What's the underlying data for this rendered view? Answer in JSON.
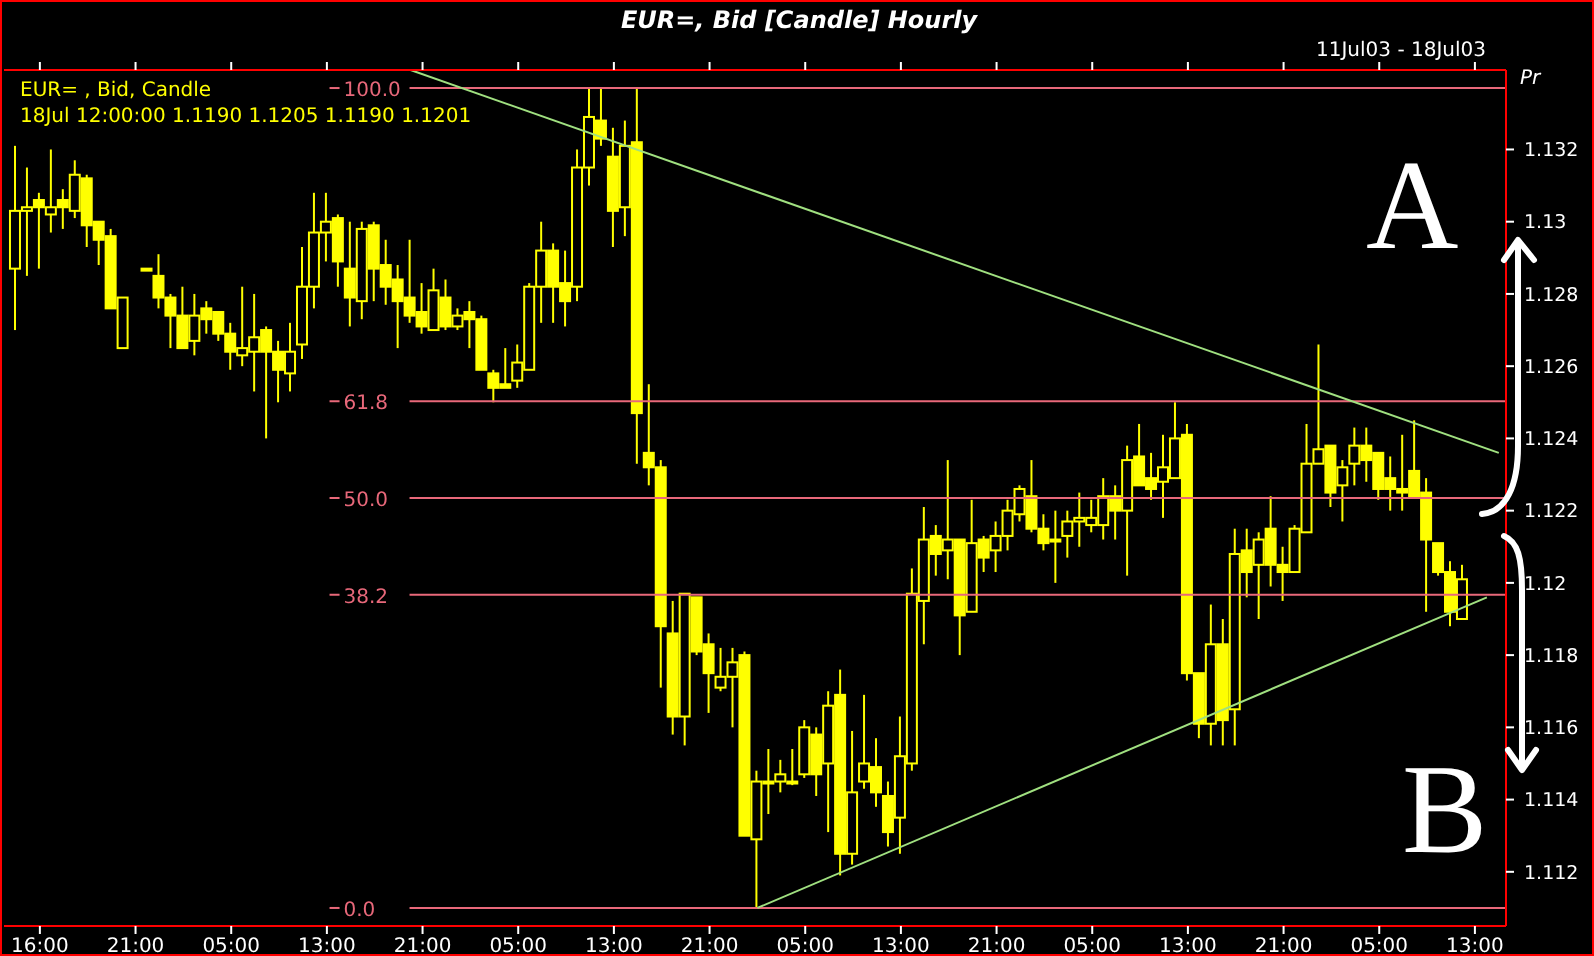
{
  "chart_data": {
    "type": "candlestick",
    "title": "EUR=, Bid [Candle] Hourly",
    "subtitle": "11Jul03 - 18Jul03",
    "ylabel": "Pr",
    "annotations": [
      "18Jul 12:00:00 1.1190 1.1205 1.1190 1.1201",
      "A",
      "B"
    ],
    "legend": "top left",
    "categories": [
      null,
      null,
      "16:00",
      null,
      null,
      null,
      null,
      null,
      null,
      null,
      "21:00",
      null,
      null,
      null,
      null,
      null,
      null,
      null,
      "05:00",
      null,
      null,
      null,
      null,
      null,
      null,
      null,
      "13:00",
      null,
      null,
      null,
      null,
      null,
      null,
      null,
      "21:00",
      null,
      null,
      null,
      null,
      null,
      null,
      null,
      "05:00",
      null,
      null,
      null,
      null,
      null,
      null,
      null,
      "13:00",
      null,
      null,
      null,
      null,
      null,
      null,
      null,
      "21:00",
      null,
      null,
      null,
      null,
      null,
      null,
      null,
      "05:00",
      null,
      null,
      null,
      null,
      null,
      null,
      null,
      "13:00",
      null,
      null,
      null,
      null,
      null,
      null,
      null,
      "21:00",
      null,
      null,
      null,
      null,
      null,
      null,
      null,
      "05:00",
      null,
      null,
      null,
      null,
      null,
      null,
      null,
      "13:00",
      null,
      null,
      null,
      null,
      null,
      null,
      null,
      "21:00",
      null,
      null,
      null,
      null,
      null,
      null,
      null,
      "05:00",
      null,
      null,
      null,
      null,
      null,
      null,
      null,
      "13:00",
      null,
      null
    ],
    "ylim": [
      1.1105,
      1.1342
    ],
    "yticks": [
      1.112,
      1.114,
      1.116,
      1.118,
      1.12,
      1.122,
      1.124,
      1.126,
      1.128,
      1.13,
      1.132
    ],
    "series": [
      {
        "name": "EUR= , Bid, Candle",
        "color": "#ffff00",
        "ohlc": [
          [
            1.1287,
            1.1321,
            1.127,
            1.1303
          ],
          [
            1.1303,
            1.1315,
            1.1285,
            1.1304
          ],
          [
            1.1306,
            1.1308,
            1.1287,
            1.1304
          ],
          [
            1.1302,
            1.132,
            1.1297,
            1.1304
          ],
          [
            1.1306,
            1.1309,
            1.1298,
            1.1304
          ],
          [
            1.1303,
            1.1317,
            1.1301,
            1.1313
          ],
          [
            1.1312,
            1.1313,
            1.1293,
            1.1299
          ],
          [
            1.13,
            1.13,
            1.1288,
            1.1295
          ],
          [
            1.1296,
            1.1298,
            1.1276,
            1.1276
          ],
          [
            1.1265,
            1.1279,
            1.1265,
            1.1279
          ],
          null,
          [
            1.1287,
            1.1287,
            1.1287,
            1.1287
          ],
          [
            1.1285,
            1.1291,
            1.1276,
            1.1279
          ],
          [
            1.1279,
            1.128,
            1.1265,
            1.1274
          ],
          [
            1.1274,
            1.1282,
            1.1265,
            1.1265
          ],
          [
            1.1267,
            1.128,
            1.1263,
            1.1274
          ],
          [
            1.1276,
            1.1278,
            1.1269,
            1.1273
          ],
          [
            1.1275,
            1.1275,
            1.1267,
            1.1269
          ],
          [
            1.1269,
            1.1272,
            1.1259,
            1.1264
          ],
          [
            1.1263,
            1.1282,
            1.126,
            1.1265
          ],
          [
            1.1264,
            1.128,
            1.1253,
            1.1268
          ],
          [
            1.127,
            1.1271,
            1.124,
            1.1264
          ],
          [
            1.1264,
            1.1267,
            1.125,
            1.1259
          ],
          [
            1.1258,
            1.1272,
            1.1253,
            1.1264
          ],
          [
            1.1266,
            1.1293,
            1.1262,
            1.1282
          ],
          [
            1.1282,
            1.1308,
            1.1276,
            1.1297
          ],
          [
            1.1297,
            1.1308,
            1.1289,
            1.13
          ],
          [
            1.1301,
            1.1302,
            1.1282,
            1.1289
          ],
          [
            1.1287,
            1.13,
            1.1271,
            1.1279
          ],
          [
            1.1278,
            1.13,
            1.1273,
            1.1298
          ],
          [
            1.1299,
            1.13,
            1.1278,
            1.1287
          ],
          [
            1.1288,
            1.1295,
            1.1277,
            1.1282
          ],
          [
            1.1284,
            1.1288,
            1.1265,
            1.1278
          ],
          [
            1.1279,
            1.1295,
            1.1272,
            1.1274
          ],
          [
            1.1275,
            1.1283,
            1.1269,
            1.1271
          ],
          [
            1.127,
            1.1287,
            1.127,
            1.1281
          ],
          [
            1.1279,
            1.1284,
            1.127,
            1.1271
          ],
          [
            1.1271,
            1.1276,
            1.127,
            1.1274
          ],
          [
            1.1275,
            1.1278,
            1.1265,
            1.1273
          ],
          [
            1.1273,
            1.1274,
            1.1259,
            1.1259
          ],
          [
            1.1258,
            1.1259,
            1.125,
            1.1254
          ],
          [
            1.1255,
            1.1265,
            1.1254,
            1.1254
          ],
          [
            1.1256,
            1.1266,
            1.1254,
            1.1261
          ],
          [
            1.1259,
            1.1283,
            1.1259,
            1.1282
          ],
          [
            1.1282,
            1.13,
            1.1272,
            1.1292
          ],
          [
            1.1292,
            1.1294,
            1.1272,
            1.1282
          ],
          [
            1.1283,
            1.1292,
            1.1271,
            1.1278
          ],
          [
            1.1282,
            1.132,
            1.1278,
            1.1315
          ],
          [
            1.1315,
            1.1337,
            1.131,
            1.1329
          ],
          [
            1.1328,
            1.1337,
            1.1321,
            1.1323
          ],
          [
            1.1318,
            1.1326,
            1.1293,
            1.1303
          ],
          [
            1.1304,
            1.1328,
            1.1296,
            1.1321
          ],
          [
            1.1322,
            1.1337,
            1.1233,
            1.1247
          ],
          [
            1.1236,
            1.1255,
            1.1227,
            1.1232
          ],
          [
            1.1232,
            1.1234,
            1.1171,
            1.1188
          ],
          [
            1.1186,
            1.1195,
            1.1158,
            1.1163
          ],
          [
            1.1163,
            1.1197,
            1.1155,
            1.1197
          ],
          [
            1.1196,
            1.1196,
            1.118,
            1.1181
          ],
          [
            1.1183,
            1.1186,
            1.1164,
            1.1175
          ],
          [
            1.1171,
            1.1182,
            1.117,
            1.1174
          ],
          [
            1.1174,
            1.1182,
            1.116,
            1.1178
          ],
          [
            1.118,
            1.1181,
            1.113,
            1.113
          ],
          [
            1.1129,
            1.1148,
            1.111,
            1.1145
          ],
          [
            1.1145,
            1.1154,
            1.1136,
            1.1145
          ],
          [
            1.1145,
            1.1151,
            1.1142,
            1.1147
          ],
          [
            1.1145,
            1.1154,
            1.1144,
            1.1145
          ],
          [
            1.1147,
            1.1162,
            1.1146,
            1.116
          ],
          [
            1.1158,
            1.116,
            1.1141,
            1.1147
          ],
          [
            1.115,
            1.117,
            1.1131,
            1.1166
          ],
          [
            1.1169,
            1.1176,
            1.1119,
            1.1125
          ],
          [
            1.1125,
            1.1159,
            1.1122,
            1.1142
          ],
          [
            1.1145,
            1.1169,
            1.1143,
            1.115
          ],
          [
            1.1149,
            1.1157,
            1.1138,
            1.1142
          ],
          [
            1.1141,
            1.1145,
            1.1127,
            1.1131
          ],
          [
            1.1135,
            1.1163,
            1.1125,
            1.1152
          ],
          [
            1.115,
            1.1204,
            1.1148,
            1.1197
          ],
          [
            1.1195,
            1.1221,
            1.1183,
            1.1212
          ],
          [
            1.1213,
            1.1216,
            1.1202,
            1.1208
          ],
          [
            1.1209,
            1.1234,
            1.1201,
            1.1212
          ],
          [
            1.1212,
            1.1212,
            1.118,
            1.1191
          ],
          [
            1.1192,
            1.1223,
            1.1192,
            1.1211
          ],
          [
            1.1212,
            1.1213,
            1.1203,
            1.1207
          ],
          [
            1.1209,
            1.1217,
            1.1203,
            1.1213
          ],
          [
            1.1213,
            1.1223,
            1.1209,
            1.122
          ],
          [
            1.1219,
            1.1227,
            1.1217,
            1.1226
          ],
          [
            1.1224,
            1.1234,
            1.1214,
            1.1215
          ],
          [
            1.1215,
            1.1219,
            1.1209,
            1.1211
          ],
          [
            1.1212,
            1.122,
            1.12,
            1.1212
          ],
          [
            1.1213,
            1.122,
            1.1207,
            1.1217
          ],
          [
            1.1217,
            1.1225,
            1.121,
            1.1218
          ],
          [
            1.1216,
            1.1223,
            1.1214,
            1.1218
          ],
          [
            1.1216,
            1.1229,
            1.1212,
            1.1224
          ],
          [
            1.1224,
            1.1227,
            1.1212,
            1.122
          ],
          [
            1.122,
            1.1238,
            1.1202,
            1.1234
          ],
          [
            1.1235,
            1.1244,
            1.1227,
            1.1227
          ],
          [
            1.1229,
            1.1236,
            1.1223,
            1.1226
          ],
          [
            1.1228,
            1.1241,
            1.1218,
            1.1232
          ],
          [
            1.1229,
            1.125,
            1.1229,
            1.124
          ],
          [
            1.1241,
            1.1244,
            1.1173,
            1.1175
          ],
          [
            1.1175,
            1.1175,
            1.1157,
            1.1161
          ],
          [
            1.1161,
            1.1194,
            1.1155,
            1.1183
          ],
          [
            1.1183,
            1.119,
            1.1155,
            1.1162
          ],
          [
            1.1165,
            1.1215,
            1.1155,
            1.1208
          ],
          [
            1.1209,
            1.1215,
            1.1196,
            1.1203
          ],
          [
            1.1205,
            1.1214,
            1.119,
            1.1212
          ],
          [
            1.1215,
            1.1224,
            1.1199,
            1.1205
          ],
          [
            1.1205,
            1.121,
            1.1195,
            1.1203
          ],
          [
            1.1203,
            1.1216,
            1.1203,
            1.1215
          ],
          [
            1.1214,
            1.1244,
            1.1214,
            1.1233
          ],
          [
            1.1233,
            1.1266,
            1.1233,
            1.1237
          ],
          [
            1.1238,
            1.1238,
            1.1221,
            1.1225
          ],
          [
            1.1227,
            1.1234,
            1.1217,
            1.1232
          ],
          [
            1.1233,
            1.1243,
            1.1227,
            1.1238
          ],
          [
            1.1238,
            1.1243,
            1.1228,
            1.1234
          ],
          [
            1.1236,
            1.1236,
            1.1223,
            1.1226
          ],
          [
            1.1229,
            1.1235,
            1.122,
            1.1226
          ],
          [
            1.1226,
            1.1241,
            1.122,
            1.1225
          ],
          [
            1.1231,
            1.1245,
            1.1224,
            1.1224
          ],
          [
            1.1225,
            1.1229,
            1.1192,
            1.1212
          ],
          [
            1.1211,
            1.1211,
            1.1202,
            1.1203
          ],
          [
            1.1203,
            1.1206,
            1.1188,
            1.1192
          ],
          [
            1.119,
            1.1205,
            1.119,
            1.1201
          ],
          null,
          null,
          null
        ]
      },
      {
        "type": "line",
        "color": "#a0e080",
        "values": [
          null,
          null,
          null,
          null,
          null,
          null,
          null,
          null,
          null,
          null,
          null,
          null,
          null,
          null,
          null,
          null,
          null,
          null,
          null,
          null,
          null,
          null,
          null,
          null,
          null,
          null,
          null,
          null,
          null,
          null,
          null,
          null,
          null,
          1.1342,
          null,
          null,
          null,
          null,
          null,
          null,
          null,
          null,
          null,
          null,
          null,
          null,
          null,
          null,
          null,
          null,
          null,
          null,
          null,
          null,
          null,
          null,
          null,
          null,
          null,
          null,
          null,
          null,
          null,
          null,
          null,
          null,
          null,
          null,
          null,
          null,
          null,
          null,
          null,
          null,
          null,
          null,
          null,
          null,
          null,
          null,
          null,
          null,
          null,
          null,
          null,
          null,
          null,
          null,
          null,
          null,
          null,
          null,
          null,
          null,
          null,
          null,
          null,
          null,
          null,
          null,
          null,
          null,
          null,
          null,
          null,
          null,
          null,
          null,
          null,
          null,
          null,
          null,
          null,
          null,
          null,
          null,
          null,
          null,
          null,
          null,
          null,
          null,
          null,
          null,
          1.1236
        ]
      },
      {
        "type": "line",
        "color": "#a0e080",
        "values": [
          null,
          null,
          null,
          null,
          null,
          null,
          null,
          null,
          null,
          null,
          null,
          null,
          null,
          null,
          null,
          null,
          null,
          null,
          null,
          null,
          null,
          null,
          null,
          null,
          null,
          null,
          null,
          null,
          null,
          null,
          null,
          null,
          null,
          null,
          null,
          null,
          null,
          null,
          null,
          null,
          null,
          null,
          null,
          null,
          null,
          null,
          null,
          null,
          null,
          null,
          null,
          null,
          null,
          null,
          null,
          null,
          null,
          null,
          null,
          null,
          null,
          null,
          1.111,
          null,
          null,
          null,
          null,
          null,
          null,
          null,
          null,
          null,
          null,
          null,
          null,
          null,
          null,
          null,
          null,
          null,
          null,
          null,
          null,
          null,
          null,
          null,
          null,
          null,
          null,
          null,
          null,
          null,
          null,
          null,
          null,
          null,
          null,
          null,
          null,
          null,
          null,
          null,
          null,
          null,
          null,
          null,
          null,
          null,
          null,
          null,
          null,
          null,
          null,
          null,
          null,
          null,
          null,
          null,
          null,
          null,
          null,
          null,
          null,
          1.1196,
          null
        ]
      }
    ],
    "y2lim": [
      -2.2,
      102.2
    ],
    "y2ticks": [
      {
        "value": 0,
        "label": "0.0"
      },
      38.2,
      {
        "value": 50,
        "label": "50.0"
      },
      61.8,
      {
        "value": 100,
        "label": "100.0"
      }
    ],
    "ref_lines": [
      {
        "axis": "y2",
        "value": 100,
        "color": "#e8687a"
      },
      {
        "axis": "y2",
        "value": 61.8,
        "color": "#e8687a"
      },
      {
        "axis": "y2",
        "value": 50,
        "color": "#e8687a"
      },
      {
        "axis": "y2",
        "value": 38.2,
        "color": "#e8687a"
      },
      {
        "axis": "y2",
        "value": 0,
        "color": "#e8687a"
      }
    ]
  }
}
